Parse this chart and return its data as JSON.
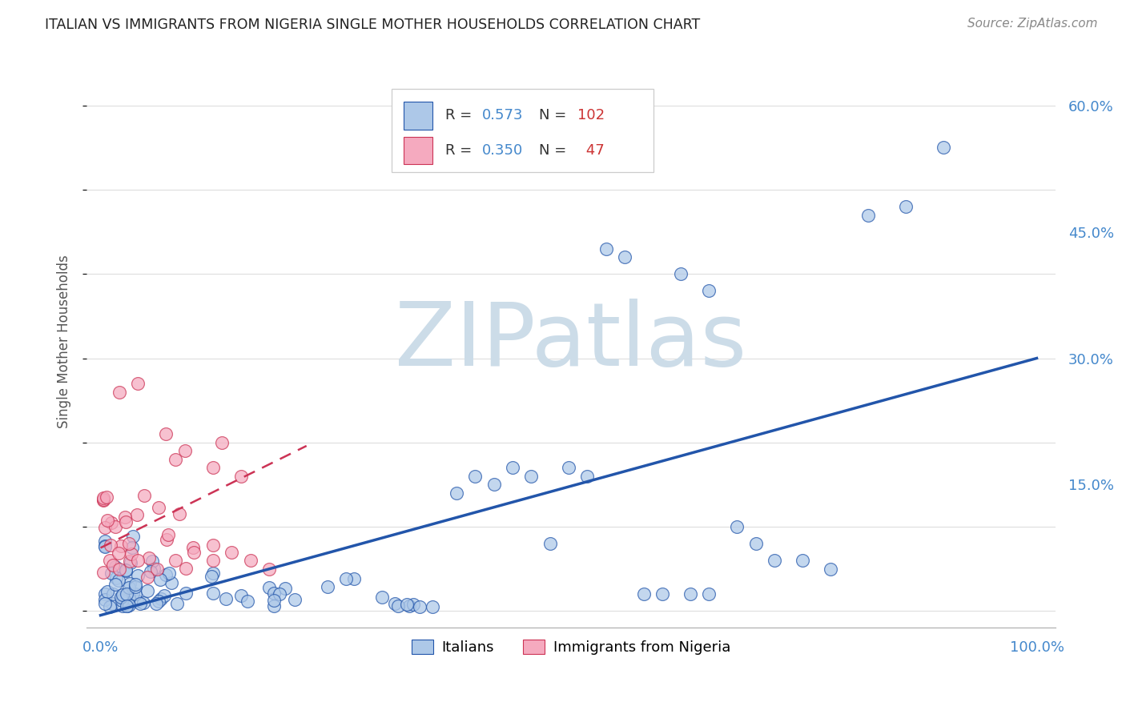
{
  "title": "ITALIAN VS IMMIGRANTS FROM NIGERIA SINGLE MOTHER HOUSEHOLDS CORRELATION CHART",
  "source": "Source: ZipAtlas.com",
  "ylabel": "Single Mother Households",
  "italian_R": 0.573,
  "italian_N": 102,
  "nigeria_R": 0.35,
  "nigeria_N": 47,
  "italian_color": "#adc8e8",
  "nigeria_color": "#f5aabf",
  "italian_line_color": "#2255aa",
  "nigeria_line_color": "#cc3355",
  "watermark": "ZIPatlas",
  "watermark_color": "#ccdce8",
  "background_color": "#ffffff",
  "grid_color": "#dddddd",
  "title_color": "#222222",
  "axis_label_color": "#4488cc",
  "legend_N_color": "#cc3333"
}
